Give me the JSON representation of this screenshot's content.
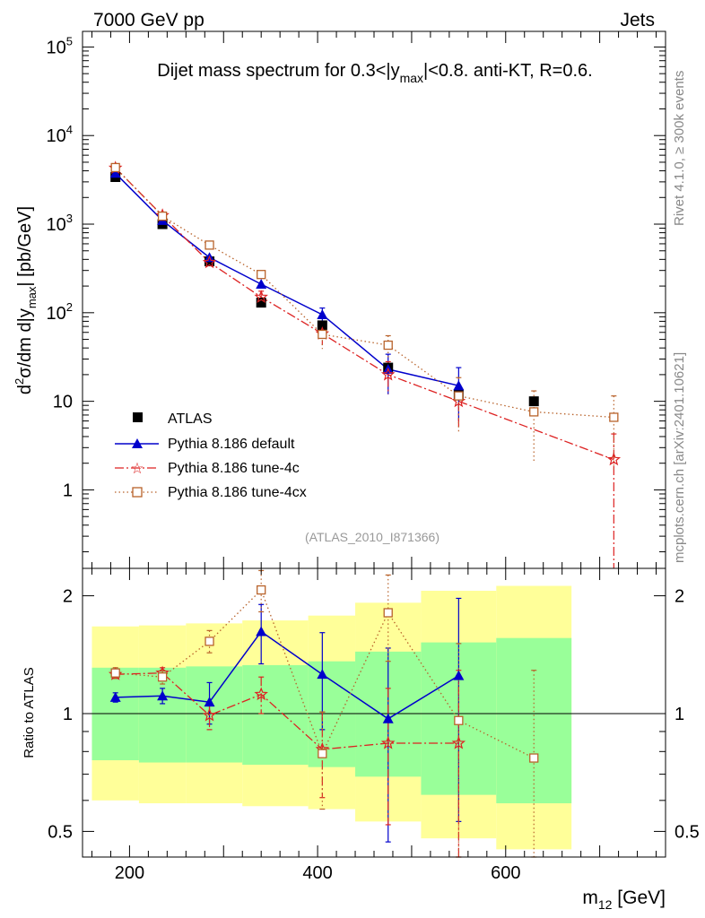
{
  "header": {
    "left": "7000 GeV pp",
    "right": "Jets",
    "side_top": "Rivet 4.1.0, ≥ 300k events",
    "side_bottom": "mcplots.cern.ch [arXiv:2401.10621]"
  },
  "chart_data": [
    {
      "type": "scatter",
      "panel": "main",
      "title": "Dijet mass spectrum for 0.3<|y_max|<0.8.  anti-KT, R=0.6.",
      "title_parts": {
        "pre": "Dijet mass spectrum for 0.3<|y",
        "sub": "max",
        "post": "|<0.8.  anti-KT, R=0.6."
      },
      "ylabel": "d²σ/dm d|y_max| [pb/GeV]",
      "ylabel_parts": {
        "d": "d",
        "sup": "2",
        "mid": "σ/dm d|y",
        "sub": "max",
        "post": "| [pb/GeV]"
      },
      "yscale": "log",
      "xlim": [
        150,
        770
      ],
      "ylim": [
        0.13,
        150000
      ],
      "yticks": [
        {
          "v": 100000,
          "base": "10",
          "exp": "5"
        },
        {
          "v": 10000,
          "base": "10",
          "exp": "4"
        },
        {
          "v": 1000,
          "base": "10",
          "exp": "3"
        },
        {
          "v": 100,
          "base": "10",
          "exp": "2"
        },
        {
          "v": 10,
          "base": "10",
          "exp": ""
        },
        {
          "v": 1,
          "base": "1",
          "exp": ""
        }
      ],
      "watermark": "(ATLAS_2010_I871366)",
      "legend_position": "bottom-left",
      "series": [
        {
          "name": "ATLAS",
          "marker": "square",
          "color": "#000000",
          "x": [
            185,
            235,
            285,
            340,
            405,
            475,
            550,
            630
          ],
          "y": [
            3400,
            1000,
            380,
            130,
            72,
            24,
            12,
            10
          ]
        },
        {
          "name": "Pythia 8.186 default",
          "marker": "triangle",
          "color": "#0000cc",
          "line": "solid",
          "x": [
            185,
            235,
            285,
            340,
            405,
            475,
            550
          ],
          "y": [
            3750,
            1100,
            420,
            210,
            95,
            23,
            15
          ],
          "err": [
            null,
            null,
            null,
            null,
            18,
            11,
            9
          ]
        },
        {
          "name": "Pythia 8.186 tune-4c",
          "marker": "star",
          "color": "#dd2222",
          "line": "dashdot",
          "x": [
            185,
            235,
            285,
            340,
            405,
            475,
            550,
            715
          ],
          "y": [
            4300,
            1250,
            370,
            150,
            58,
            20,
            10,
            2.2
          ],
          "err": [
            null,
            null,
            null,
            25,
            15,
            8,
            5,
            2.08
          ]
        },
        {
          "name": "Pythia 8.186 tune-4cx",
          "marker": "open-square",
          "color": "#b8622a",
          "line": "dotted",
          "x": [
            185,
            235,
            285,
            340,
            405,
            475,
            550,
            630,
            715
          ],
          "y": [
            4350,
            1230,
            580,
            270,
            57,
            43,
            11.5,
            7.6,
            6.6
          ],
          "err": [
            null,
            null,
            null,
            null,
            18,
            12,
            7,
            5.5,
            4.9
          ]
        }
      ]
    },
    {
      "type": "scatter",
      "panel": "ratio",
      "ylabel": "Ratio to ATLAS",
      "xlabel": "m_12 [GeV]",
      "xlabel_parts": {
        "pre": "m",
        "sub": "12",
        "post": " [GeV]"
      },
      "yscale": "log",
      "xlim": [
        150,
        770
      ],
      "ylim": [
        0.43,
        2.35
      ],
      "xticks": [
        200,
        400,
        600
      ],
      "yticks": [
        0.5,
        1,
        2
      ],
      "ytick_labels": [
        "0.5",
        "1",
        "2"
      ],
      "bands": {
        "edges": [
          160,
          210,
          260,
          320,
          390,
          440,
          510,
          590,
          670
        ],
        "green_low": [
          0.76,
          0.75,
          0.75,
          0.74,
          0.73,
          0.69,
          0.62,
          0.59
        ],
        "green_high": [
          1.31,
          1.31,
          1.32,
          1.33,
          1.36,
          1.44,
          1.52,
          1.56
        ],
        "yellow_low": [
          0.6,
          0.59,
          0.59,
          0.58,
          0.57,
          0.53,
          0.48,
          0.45
        ],
        "yellow_high": [
          1.67,
          1.68,
          1.7,
          1.73,
          1.78,
          1.92,
          2.06,
          2.12
        ]
      },
      "series": [
        {
          "name": "Pythia 8.186 default",
          "color": "#0000cc",
          "marker": "triangle",
          "x": [
            185,
            235,
            285,
            340,
            405,
            475,
            550
          ],
          "y": [
            1.1,
            1.11,
            1.07,
            1.62,
            1.26,
            0.97,
            1.25
          ],
          "err": [
            0.03,
            0.05,
            0.13,
            0.28,
            0.35,
            0.5,
            0.72
          ]
        },
        {
          "name": "Pythia 8.186 tune-4c",
          "color": "#dd2222",
          "marker": "star",
          "x": [
            185,
            235,
            285,
            340,
            405,
            475,
            550
          ],
          "y": [
            1.26,
            1.27,
            0.99,
            1.12,
            0.81,
            0.84,
            0.84
          ],
          "err": [
            0.03,
            0.04,
            0.08,
            0.12,
            0.2,
            0.32,
            0.45
          ]
        },
        {
          "name": "Pythia 8.186 tune-4cx",
          "color": "#b8622a",
          "marker": "open-square",
          "x": [
            185,
            235,
            285,
            340,
            405,
            475,
            550,
            630
          ],
          "y": [
            1.27,
            1.24,
            1.53,
            2.07,
            0.79,
            1.81,
            0.96,
            0.77
          ],
          "err": [
            0.04,
            0.05,
            0.1,
            0.25,
            0.22,
            0.45,
            0.55,
            0.52
          ]
        }
      ]
    }
  ]
}
